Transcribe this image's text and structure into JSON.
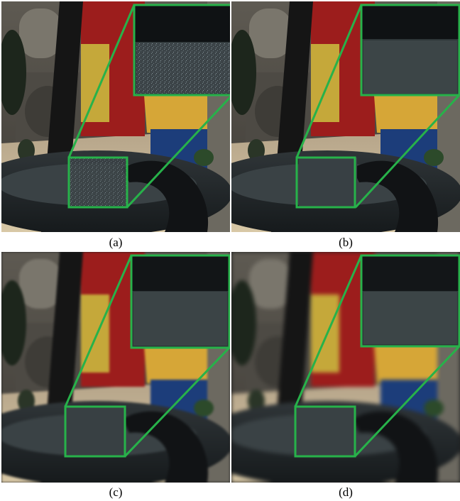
{
  "figure": {
    "panels": [
      {
        "id": "a",
        "caption": "(a)"
      },
      {
        "id": "b",
        "caption": "(b)"
      },
      {
        "id": "c",
        "caption": "(c)"
      },
      {
        "id": "d",
        "caption": "(d)"
      }
    ],
    "highlight_color": "#27b24a",
    "scene_description_icon": "sponza-courtyard-render"
  }
}
